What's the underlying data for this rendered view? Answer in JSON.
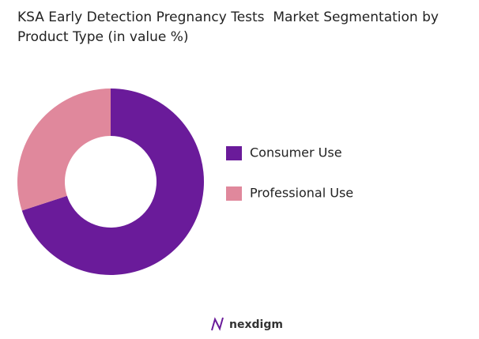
{
  "chart_data": {
    "type": "donut",
    "title": "KSA Early Detection Pregnancy Tests  Market Segmentation by Product Type (in value %)",
    "categories": [
      "Consumer Use",
      "Professional Use"
    ],
    "values": [
      70,
      30
    ],
    "colors": [
      "#6a1b9a",
      "#e0889c"
    ],
    "legend": "right"
  },
  "footer": {
    "logo": "nexdigm"
  }
}
